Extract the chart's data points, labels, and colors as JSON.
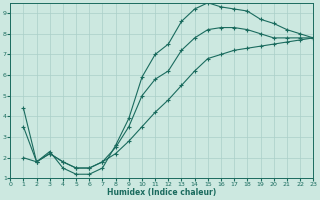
{
  "xlabel": "Humidex (Indice chaleur)",
  "bg_color": "#cce8e0",
  "line_color": "#1a6b5e",
  "grid_color": "#aacfc8",
  "xlim": [
    0,
    23
  ],
  "ylim": [
    1,
    9.5
  ],
  "xticks": [
    0,
    1,
    2,
    3,
    4,
    5,
    6,
    7,
    8,
    9,
    10,
    11,
    12,
    13,
    14,
    15,
    16,
    17,
    18,
    19,
    20,
    21,
    22,
    23
  ],
  "yticks": [
    1,
    2,
    3,
    4,
    5,
    6,
    7,
    8,
    9
  ],
  "line1_x": [
    1,
    2,
    3,
    4,
    5,
    6,
    7,
    8,
    9,
    10,
    11,
    12,
    13,
    14,
    15,
    16,
    17,
    18,
    19,
    20,
    21,
    22,
    23
  ],
  "line1_y": [
    4.4,
    1.8,
    2.3,
    1.5,
    1.2,
    1.2,
    1.5,
    2.6,
    3.9,
    5.9,
    7.0,
    7.5,
    8.6,
    9.2,
    9.5,
    9.3,
    9.2,
    9.1,
    8.7,
    8.5,
    8.2,
    8.0,
    7.8
  ],
  "line2_x": [
    1,
    2,
    3,
    4,
    5,
    6,
    7,
    8,
    9,
    10,
    11,
    12,
    13,
    14,
    15,
    16,
    17,
    18,
    19,
    20,
    21,
    22,
    23
  ],
  "line2_y": [
    2.0,
    1.8,
    2.2,
    1.8,
    1.5,
    1.5,
    1.8,
    2.2,
    2.8,
    3.5,
    4.2,
    4.8,
    5.5,
    6.2,
    6.8,
    7.0,
    7.2,
    7.3,
    7.4,
    7.5,
    7.6,
    7.7,
    7.8
  ],
  "line3_x": [
    1,
    2,
    3,
    4,
    5,
    6,
    7,
    8,
    9,
    10,
    11,
    12,
    13,
    14,
    15,
    16,
    17,
    18,
    19,
    20,
    21,
    22,
    23
  ],
  "line3_y": [
    3.5,
    1.8,
    2.2,
    1.8,
    1.5,
    1.5,
    1.8,
    2.5,
    3.5,
    5.0,
    5.8,
    6.2,
    7.2,
    7.8,
    8.2,
    8.3,
    8.3,
    8.2,
    8.0,
    7.8,
    7.8,
    7.8,
    7.8
  ]
}
